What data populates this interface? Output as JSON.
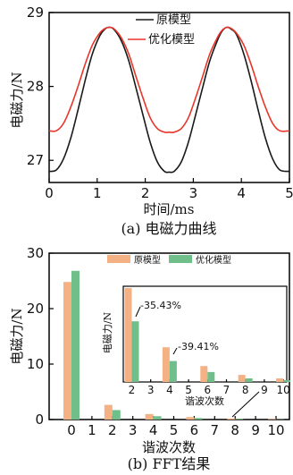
{
  "chart_data": [
    {
      "type": "line",
      "xlabel": "时间/ms",
      "ylabel": "电磁力/N",
      "xlim": [
        0,
        5
      ],
      "ylim": [
        26.7,
        29
      ],
      "xticks": [
        "0",
        "1",
        "2",
        "3",
        "4",
        "5"
      ],
      "yticks": [
        "27",
        "28",
        "29"
      ],
      "caption": "(a) 电磁力曲线",
      "legend_position": "top-right",
      "series": [
        {
          "name": "原模型",
          "color": "#1a1a1a",
          "x": [
            0.0,
            0.15,
            0.3,
            0.45,
            0.6,
            0.75,
            0.9,
            1.05,
            1.15,
            1.25,
            1.35,
            1.5,
            1.65,
            1.8,
            1.95,
            2.1,
            2.25,
            2.4,
            2.5,
            2.6,
            2.75,
            2.9,
            3.05,
            3.2,
            3.35,
            3.5,
            3.6,
            3.7,
            3.8,
            3.9,
            4.05,
            4.2,
            4.35,
            4.5,
            4.65,
            4.8,
            5.0
          ],
          "y": [
            26.85,
            26.87,
            27.02,
            27.3,
            27.68,
            28.08,
            28.44,
            28.68,
            28.77,
            28.8,
            28.77,
            28.62,
            28.36,
            28.0,
            27.62,
            27.25,
            26.98,
            26.85,
            26.84,
            26.85,
            26.98,
            27.25,
            27.62,
            28.0,
            28.36,
            28.62,
            28.75,
            28.8,
            28.77,
            28.7,
            28.44,
            28.08,
            27.68,
            27.3,
            27.02,
            26.87,
            26.85
          ]
        },
        {
          "name": "优化模型",
          "color": "#e8352a",
          "x": [
            0.0,
            0.15,
            0.3,
            0.45,
            0.6,
            0.75,
            0.9,
            1.05,
            1.15,
            1.25,
            1.35,
            1.5,
            1.65,
            1.8,
            1.95,
            2.1,
            2.25,
            2.4,
            2.5,
            2.6,
            2.75,
            2.9,
            3.05,
            3.2,
            3.35,
            3.5,
            3.6,
            3.7,
            3.8,
            3.9,
            4.05,
            4.2,
            4.35,
            4.5,
            4.65,
            4.8,
            5.0
          ],
          "y": [
            27.4,
            27.4,
            27.5,
            27.72,
            28.0,
            28.3,
            28.56,
            28.72,
            28.78,
            28.8,
            28.78,
            28.66,
            28.45,
            28.15,
            27.85,
            27.58,
            27.43,
            27.38,
            27.38,
            27.38,
            27.43,
            27.58,
            27.85,
            28.15,
            28.45,
            28.66,
            28.76,
            28.8,
            28.78,
            28.72,
            28.56,
            28.3,
            28.0,
            27.72,
            27.5,
            27.4,
            27.4
          ]
        }
      ]
    },
    {
      "type": "bar",
      "xlabel": "谐波次数",
      "ylabel": "电磁力/N",
      "ylim": [
        0,
        30
      ],
      "xticks": [
        "0",
        "1",
        "2",
        "3",
        "4",
        "5",
        "6",
        "7",
        "8",
        "9",
        "10"
      ],
      "yticks": [
        "0",
        "10",
        "20",
        "30"
      ],
      "caption": "(b) FFT结果",
      "legend_position": "top",
      "categories": [
        0,
        1,
        2,
        3,
        4,
        5,
        6,
        7,
        8,
        9,
        10
      ],
      "series": [
        {
          "name": "原模型",
          "color": "#f4b183",
          "values": [
            24.8,
            0,
            2.65,
            0,
            0.98,
            0,
            0.45,
            0,
            0.2,
            0,
            0.1
          ]
        },
        {
          "name": "优化模型",
          "color": "#70bf8b",
          "values": [
            26.8,
            0,
            1.71,
            0,
            0.59,
            0,
            0.28,
            0,
            0.1,
            0,
            0.05
          ]
        }
      ],
      "inset": {
        "ylabel": "电磁力/N",
        "xlabel": "谐波次数",
        "xticks": [
          "2",
          "3",
          "4",
          "5",
          "6",
          "7",
          "8",
          "9",
          "10"
        ],
        "ylim": [
          0,
          2.7
        ],
        "annotations": [
          "-35.43%",
          "-39.41%"
        ]
      }
    }
  ]
}
